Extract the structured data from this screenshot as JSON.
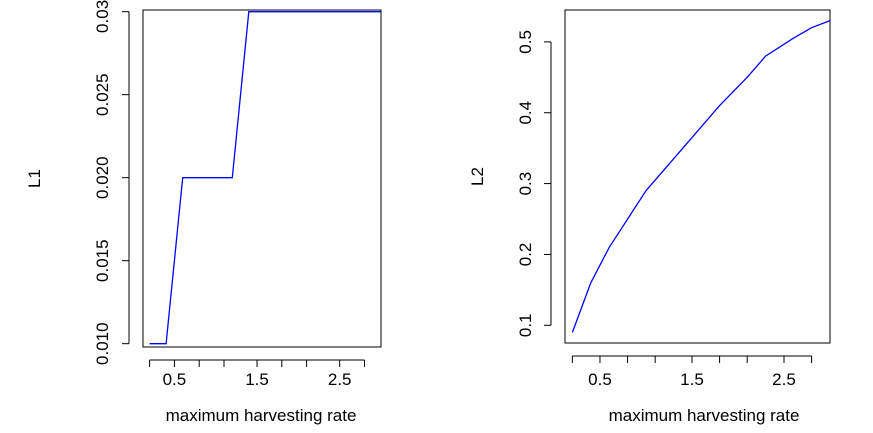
{
  "chart_data": [
    {
      "type": "line",
      "ylabel": "L1",
      "xlabel": "maximum harvesting rate",
      "xlim": [
        0.12,
        3.0
      ],
      "ylim": [
        0.0098,
        0.0301
      ],
      "x_ticks": [
        0.2,
        0.5,
        0.8,
        1.1,
        1.5,
        1.8,
        2.1,
        2.5,
        2.8
      ],
      "x_tick_labels": [
        {
          "value": 0.5,
          "text": "0.5"
        },
        {
          "value": 1.5,
          "text": "1.5"
        },
        {
          "value": 2.5,
          "text": "2.5"
        }
      ],
      "y_ticks": [
        {
          "value": 0.01,
          "text": "0.010"
        },
        {
          "value": 0.015,
          "text": "0.015"
        },
        {
          "value": 0.02,
          "text": "0.020"
        },
        {
          "value": 0.025,
          "text": "0.025"
        },
        {
          "value": 0.03,
          "text": "0.030"
        }
      ],
      "color": "#0000ff",
      "series": [
        {
          "x": [
            0.2,
            0.4,
            0.6,
            1.2,
            1.4,
            3.0
          ],
          "y": [
            0.01,
            0.01,
            0.02,
            0.02,
            0.03,
            0.03
          ]
        }
      ]
    },
    {
      "type": "line",
      "ylabel": "L2",
      "xlabel": "maximum harvesting rate",
      "xlim": [
        0.12,
        3.0
      ],
      "ylim": [
        0.075,
        0.545
      ],
      "x_ticks": [
        0.2,
        0.5,
        0.8,
        1.1,
        1.5,
        1.8,
        2.1,
        2.5,
        2.8
      ],
      "x_tick_labels": [
        {
          "value": 0.5,
          "text": "0.5"
        },
        {
          "value": 1.5,
          "text": "1.5"
        },
        {
          "value": 2.5,
          "text": "2.5"
        }
      ],
      "y_ticks": [
        {
          "value": 0.1,
          "text": "0.1"
        },
        {
          "value": 0.2,
          "text": "0.2"
        },
        {
          "value": 0.3,
          "text": "0.3"
        },
        {
          "value": 0.4,
          "text": "0.4"
        },
        {
          "value": 0.5,
          "text": "0.5"
        }
      ],
      "color": "#0000ff",
      "series": [
        {
          "x": [
            0.2,
            0.4,
            0.6,
            1.0,
            1.4,
            1.8,
            2.1,
            2.3,
            2.6,
            2.8,
            3.0
          ],
          "y": [
            0.09,
            0.16,
            0.21,
            0.29,
            0.35,
            0.41,
            0.45,
            0.48,
            0.505,
            0.52,
            0.53
          ]
        }
      ]
    }
  ]
}
